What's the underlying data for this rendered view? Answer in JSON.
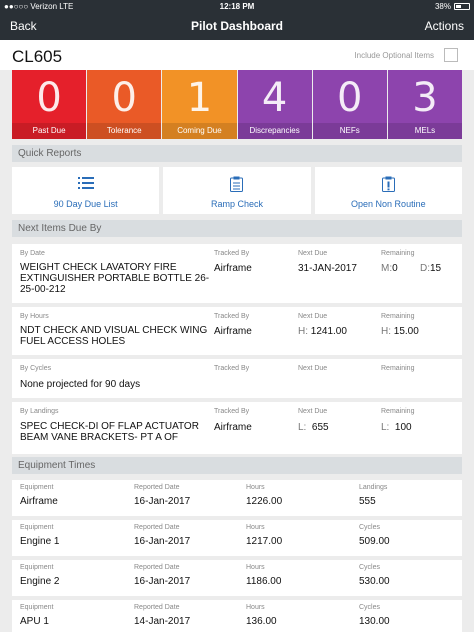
{
  "status_bar": {
    "carrier": "●●○○○ Verizon  LTE",
    "time": "12:18 PM",
    "battery": "38%"
  },
  "nav": {
    "back": "Back",
    "title": "Pilot Dashboard",
    "actions": "Actions"
  },
  "header": {
    "tail": "CL605",
    "optional_label": "Include Optional Items"
  },
  "colors": {
    "past_due": "#e5202b",
    "tolerance": "#ea5a27",
    "coming_due": "#f29226",
    "discrepancies": "#8d44ad",
    "nefs": "#8d44ad",
    "mels": "#8d44ad"
  },
  "tiles": [
    {
      "value": "0",
      "label": "Past Due"
    },
    {
      "value": "0",
      "label": "Tolerance"
    },
    {
      "value": "1",
      "label": "Coming Due"
    },
    {
      "value": "4",
      "label": "Discrepancies"
    },
    {
      "value": "0",
      "label": "NEFs"
    },
    {
      "value": "3",
      "label": "MELs"
    }
  ],
  "quick_reports": {
    "title": "Quick Reports",
    "buttons": [
      {
        "label": "90 Day Due List",
        "icon": "list-icon"
      },
      {
        "label": "Ramp Check",
        "icon": "clipboard-icon"
      },
      {
        "label": "Open Non Routine",
        "icon": "clipboard-alert-icon"
      }
    ]
  },
  "next_items": {
    "title": "Next Items Due By",
    "col_tracked": "Tracked By",
    "col_next": "Next Due",
    "col_remaining": "Remaining",
    "items": [
      {
        "by": "By Date",
        "desc": "WEIGHT CHECK LAVATORY FIRE EXTINGUISHER PORTABLE BOTTLE 26-25-00-212",
        "tracked": "Airframe",
        "next_prefix": "",
        "next": "31-JAN-2017",
        "rem_prefix": "M:",
        "rem": "0",
        "rem2_prefix": "D:",
        "rem2": "15"
      },
      {
        "by": "By Hours",
        "desc": "NDT CHECK AND VISUAL CHECK WING FUEL ACCESS HOLES",
        "tracked": "Airframe",
        "next_prefix": "H:",
        "next": "1241.00",
        "rem_prefix": "H:",
        "rem": "15.00",
        "rem2_prefix": "",
        "rem2": ""
      },
      {
        "by": "By Cycles",
        "desc": "None projected for 90 days",
        "tracked": "",
        "next_prefix": "",
        "next": "",
        "rem_prefix": "",
        "rem": "",
        "rem2_prefix": "",
        "rem2": ""
      },
      {
        "by": "By Landings",
        "desc": "SPEC CHECK-DI OF FLAP ACTUATOR BEAM VANE BRACKETS- PT A OF",
        "tracked": "Airframe",
        "next_prefix": "L:",
        "next": "655",
        "rem_prefix": "L:",
        "rem": "100",
        "rem2_prefix": "",
        "rem2": ""
      }
    ]
  },
  "equipment": {
    "title": "Equipment Times",
    "col_equipment": "Equipment",
    "col_reported": "Reported Date",
    "col_hours": "Hours",
    "rows": [
      {
        "name": "Airframe",
        "reported": "16-Jan-2017",
        "hours": "1226.00",
        "c4_label": "Landings",
        "c4": "555"
      },
      {
        "name": "Engine 1",
        "reported": "16-Jan-2017",
        "hours": "1217.00",
        "c4_label": "Cycles",
        "c4": "509.00"
      },
      {
        "name": "Engine 2",
        "reported": "16-Jan-2017",
        "hours": "1186.00",
        "c4_label": "Cycles",
        "c4": "530.00"
      },
      {
        "name": "APU 1",
        "reported": "14-Jan-2017",
        "hours": "136.00",
        "c4_label": "Cycles",
        "c4": "130.00"
      }
    ]
  }
}
